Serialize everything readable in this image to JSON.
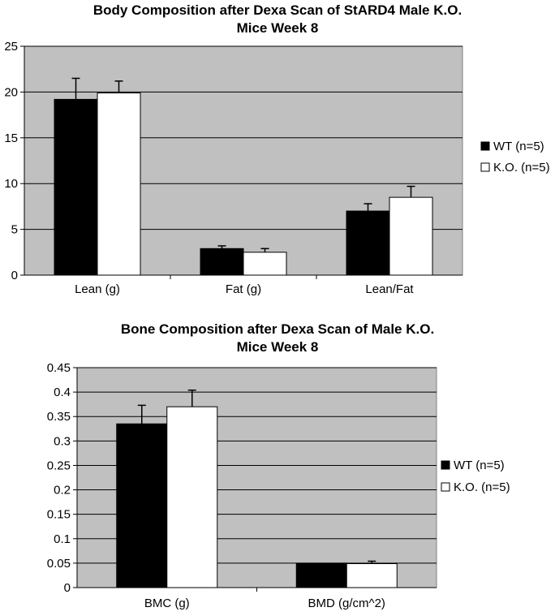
{
  "chart_data": [
    {
      "type": "bar",
      "title_line1": "Body Composition after Dexa Scan of StARD4 Male K.O.",
      "title_line2": "Mice Week 8",
      "categories": [
        "Lean (g)",
        "Fat (g)",
        "Lean/Fat"
      ],
      "series": [
        {
          "name": "WT (n=5)",
          "values": [
            19.2,
            2.9,
            7.0
          ],
          "errors": [
            2.3,
            0.3,
            0.8
          ],
          "color": "#000000"
        },
        {
          "name": "K.O. (n=5)",
          "values": [
            19.9,
            2.5,
            8.5
          ],
          "errors": [
            1.3,
            0.4,
            1.2
          ],
          "color": "#ffffff"
        }
      ],
      "ylim": [
        0,
        25
      ],
      "yticks": [
        "0",
        "5",
        "10",
        "15",
        "20",
        "25"
      ],
      "ytick_values": [
        0,
        5,
        10,
        15,
        20,
        25
      ],
      "grid": true,
      "plot_background": "#c0c0c0",
      "legend_position": "right"
    },
    {
      "type": "bar",
      "title_line1": "Bone Composition after Dexa Scan of Male K.O.",
      "title_line2": "Mice Week 8",
      "categories": [
        "BMC (g)",
        "BMD (g/cm^2)"
      ],
      "series": [
        {
          "name": "WT (n=5)",
          "values": [
            0.335,
            0.05
          ],
          "errors": [
            0.038,
            0.0
          ],
          "color": "#000000"
        },
        {
          "name": "K.O. (n=5)",
          "values": [
            0.37,
            0.049
          ],
          "errors": [
            0.034,
            0.005
          ],
          "color": "#ffffff"
        }
      ],
      "ylim": [
        0,
        0.45
      ],
      "yticks": [
        "0",
        "0.05",
        "0.1",
        "0.15",
        "0.2",
        "0.25",
        "0.3",
        "0.35",
        "0.4",
        "0.45"
      ],
      "ytick_values": [
        0,
        0.05,
        0.1,
        0.15,
        0.2,
        0.25,
        0.3,
        0.35,
        0.4,
        0.45
      ],
      "grid": true,
      "plot_background": "#c0c0c0",
      "legend_position": "right"
    }
  ]
}
